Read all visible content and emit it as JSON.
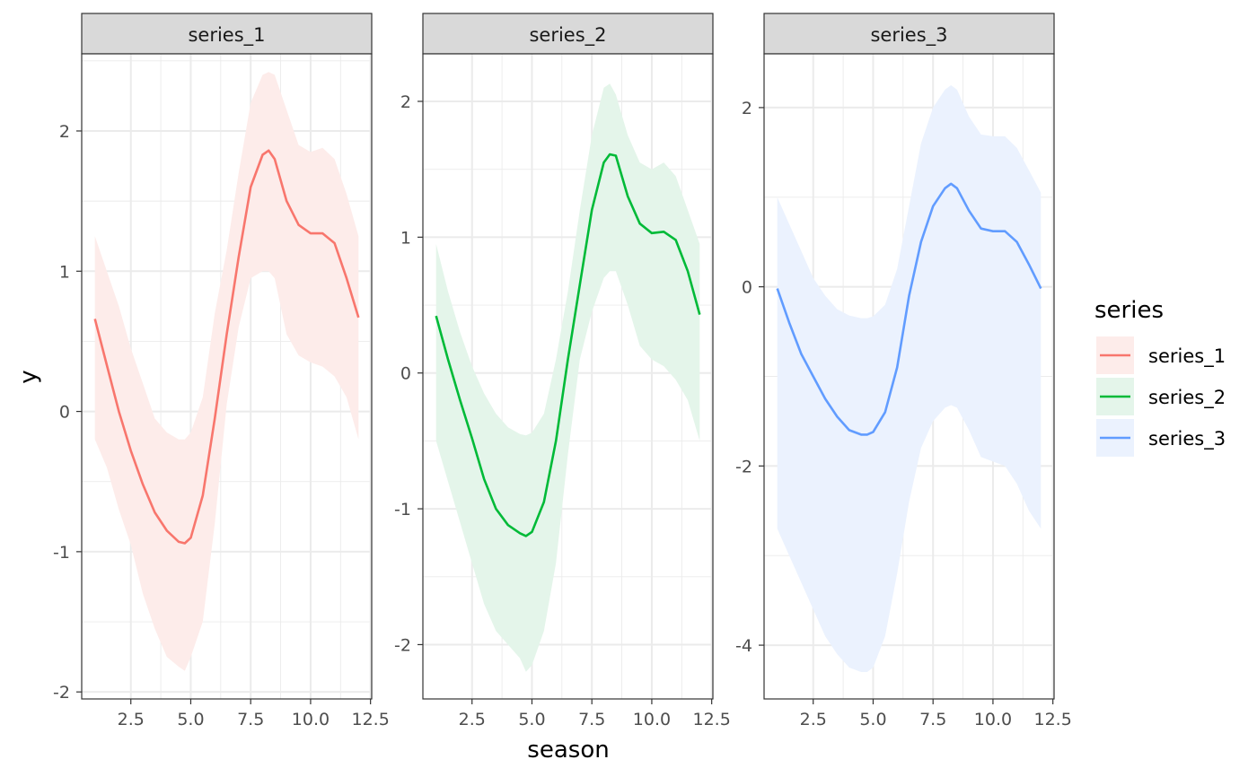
{
  "chart_data": {
    "type": "line",
    "facet_by": "series",
    "xlabel": "season",
    "ylabel": "y",
    "x_ticks": [
      2.5,
      5.0,
      7.5,
      10.0,
      12.5
    ],
    "x_tick_labels": [
      "2.5",
      "5.0",
      "7.5",
      "10.0",
      "12.5"
    ],
    "legend": {
      "title": "series",
      "position": "right",
      "entries": [
        "series_1",
        "series_2",
        "series_3"
      ]
    },
    "grid": true,
    "panels": [
      {
        "name": "series_1",
        "color": "#F8766D",
        "fill": "#FDECEA",
        "xlim": [
          0.45,
          12.55
        ],
        "ylim": [
          -2.05,
          2.55
        ],
        "y_ticks": [
          -2,
          -1,
          0,
          1,
          2
        ],
        "y_tick_labels": [
          "-2",
          "-1",
          "0",
          "1",
          "2"
        ],
        "x": [
          1,
          1.5,
          2,
          2.5,
          3,
          3.5,
          4,
          4.5,
          4.75,
          5,
          5.5,
          6,
          6.5,
          7,
          7.5,
          8,
          8.25,
          8.5,
          9,
          9.5,
          10,
          10.5,
          11,
          11.5,
          12
        ],
        "y": [
          0.66,
          0.33,
          0.0,
          -0.28,
          -0.52,
          -0.72,
          -0.85,
          -0.93,
          -0.94,
          -0.9,
          -0.6,
          -0.05,
          0.55,
          1.1,
          1.6,
          1.83,
          1.86,
          1.8,
          1.5,
          1.33,
          1.27,
          1.27,
          1.2,
          0.95,
          0.67
        ],
        "lower": [
          -0.2,
          -0.4,
          -0.7,
          -0.95,
          -1.3,
          -1.55,
          -1.75,
          -1.82,
          -1.85,
          -1.75,
          -1.5,
          -0.8,
          0.05,
          0.6,
          0.95,
          1.0,
          1.0,
          0.95,
          0.55,
          0.4,
          0.35,
          0.32,
          0.25,
          0.1,
          -0.2
        ],
        "upper": [
          1.25,
          1.0,
          0.75,
          0.45,
          0.2,
          -0.05,
          -0.15,
          -0.2,
          -0.2,
          -0.15,
          0.1,
          0.7,
          1.15,
          1.7,
          2.2,
          2.4,
          2.42,
          2.4,
          2.15,
          1.9,
          1.85,
          1.88,
          1.8,
          1.55,
          1.25
        ]
      },
      {
        "name": "series_2",
        "color": "#00BA38",
        "fill": "#E4F5EA",
        "xlim": [
          0.45,
          12.55
        ],
        "ylim": [
          -2.4,
          2.35
        ],
        "y_ticks": [
          -2,
          -1,
          0,
          1,
          2
        ],
        "y_tick_labels": [
          "-2",
          "-1",
          "0",
          "1",
          "2"
        ],
        "x": [
          1,
          1.5,
          2,
          2.5,
          3,
          3.5,
          4,
          4.5,
          4.75,
          5,
          5.5,
          6,
          6.5,
          7,
          7.5,
          8,
          8.25,
          8.5,
          9,
          9.5,
          10,
          10.5,
          11,
          11.5,
          12
        ],
        "y": [
          0.42,
          0.1,
          -0.2,
          -0.48,
          -0.78,
          -1.0,
          -1.12,
          -1.18,
          -1.2,
          -1.17,
          -0.95,
          -0.5,
          0.1,
          0.65,
          1.2,
          1.55,
          1.61,
          1.6,
          1.3,
          1.1,
          1.03,
          1.04,
          0.98,
          0.75,
          0.43
        ],
        "lower": [
          -0.5,
          -0.8,
          -1.1,
          -1.4,
          -1.7,
          -1.9,
          -2.0,
          -2.1,
          -2.2,
          -2.15,
          -1.9,
          -1.4,
          -0.6,
          0.1,
          0.45,
          0.7,
          0.75,
          0.75,
          0.5,
          0.2,
          0.1,
          0.05,
          -0.05,
          -0.2,
          -0.5
        ],
        "upper": [
          0.95,
          0.6,
          0.3,
          0.05,
          -0.15,
          -0.3,
          -0.4,
          -0.45,
          -0.46,
          -0.44,
          -0.3,
          0.1,
          0.6,
          1.2,
          1.75,
          2.1,
          2.13,
          2.05,
          1.75,
          1.55,
          1.5,
          1.55,
          1.45,
          1.2,
          0.95
        ]
      },
      {
        "name": "series_3",
        "color": "#619CFF",
        "fill": "#EBF2FE",
        "xlim": [
          0.45,
          12.55
        ],
        "ylim": [
          -4.6,
          2.6
        ],
        "y_ticks": [
          -4,
          -2,
          0,
          2
        ],
        "y_tick_labels": [
          "-4",
          "-2",
          "0",
          "2"
        ],
        "x": [
          1,
          1.5,
          2,
          2.5,
          3,
          3.5,
          4,
          4.5,
          4.75,
          5,
          5.5,
          6,
          6.5,
          7,
          7.5,
          8,
          8.25,
          8.5,
          9,
          9.5,
          10,
          10.5,
          11,
          11.5,
          12
        ],
        "y": [
          -0.02,
          -0.4,
          -0.75,
          -1.0,
          -1.25,
          -1.45,
          -1.6,
          -1.65,
          -1.65,
          -1.62,
          -1.4,
          -0.9,
          -0.1,
          0.5,
          0.9,
          1.1,
          1.15,
          1.1,
          0.85,
          0.65,
          0.62,
          0.62,
          0.5,
          0.25,
          -0.02
        ],
        "lower": [
          -2.7,
          -3.0,
          -3.3,
          -3.6,
          -3.9,
          -4.1,
          -4.25,
          -4.3,
          -4.3,
          -4.25,
          -3.9,
          -3.2,
          -2.4,
          -1.8,
          -1.5,
          -1.35,
          -1.32,
          -1.35,
          -1.6,
          -1.9,
          -1.95,
          -2.0,
          -2.2,
          -2.5,
          -2.7
        ],
        "upper": [
          1.0,
          0.7,
          0.4,
          0.1,
          -0.1,
          -0.25,
          -0.32,
          -0.35,
          -0.35,
          -0.33,
          -0.2,
          0.2,
          0.9,
          1.6,
          2.0,
          2.2,
          2.25,
          2.2,
          1.9,
          1.7,
          1.68,
          1.68,
          1.55,
          1.3,
          1.05
        ]
      }
    ]
  }
}
